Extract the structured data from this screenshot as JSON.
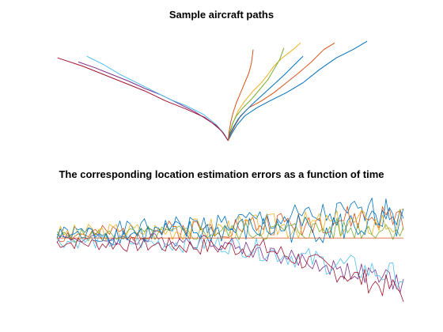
{
  "chart_data": [
    {
      "type": "line",
      "title": "Sample aircraft paths",
      "xlabel": "",
      "ylabel": "",
      "xlim": [
        -200,
        165
      ],
      "ylim": [
        0,
        124
      ],
      "axes_visible": false,
      "grid": false,
      "series": [
        {
          "color": "#0072BD",
          "x": [
            0,
            4,
            10,
            20,
            35,
            50,
            70,
            90,
            110,
            130,
            150,
            167
          ],
          "y": [
            0,
            8,
            18,
            30,
            40,
            48,
            58,
            70,
            86,
            100,
            110,
            120
          ]
        },
        {
          "color": "#D95319",
          "x": [
            0,
            3,
            8,
            15,
            25,
            40,
            55,
            70,
            85,
            100,
            115,
            128
          ],
          "y": [
            0,
            8,
            18,
            30,
            40,
            48,
            58,
            70,
            82,
            95,
            110,
            118
          ]
        },
        {
          "color": "#EDB120",
          "x": [
            0,
            2,
            6,
            12,
            20,
            30,
            40,
            48,
            55,
            65,
            78,
            87
          ],
          "y": [
            0,
            10,
            22,
            36,
            48,
            60,
            70,
            80,
            90,
            100,
            110,
            118
          ]
        },
        {
          "color": "#7E2F8E",
          "x": [
            0,
            -8,
            -20,
            -40,
            -60,
            -80,
            -100,
            -120,
            -140,
            -160,
            -180
          ],
          "y": [
            0,
            12,
            22,
            35,
            45,
            55,
            63,
            72,
            80,
            88,
            95
          ]
        },
        {
          "color": "#77AC30",
          "x": [
            0,
            2,
            5,
            10,
            18,
            28,
            38,
            48,
            55,
            62,
            67
          ],
          "y": [
            0,
            10,
            20,
            30,
            40,
            50,
            62,
            74,
            86,
            98,
            112
          ]
        },
        {
          "color": "#4DBEEE",
          "x": [
            0,
            -6,
            -15,
            -30,
            -50,
            -70,
            -90,
            -110,
            -130,
            -150,
            -170
          ],
          "y": [
            0,
            10,
            20,
            32,
            42,
            50,
            60,
            70,
            80,
            92,
            102
          ]
        },
        {
          "color": "#A2142F",
          "x": [
            0,
            -5,
            -14,
            -28,
            -50,
            -75,
            -100,
            -125,
            -150,
            -175,
            -205
          ],
          "y": [
            0,
            8,
            18,
            28,
            38,
            48,
            60,
            70,
            80,
            90,
            100
          ]
        },
        {
          "color": "#0072BD",
          "x": [
            0,
            2,
            6,
            12,
            20,
            30,
            42,
            55,
            68,
            80,
            90
          ],
          "y": [
            0,
            8,
            16,
            26,
            35,
            45,
            56,
            68,
            80,
            92,
            102
          ]
        },
        {
          "color": "#D95319",
          "x": [
            0,
            1,
            3,
            6,
            10,
            15,
            20,
            25,
            28,
            30
          ],
          "y": [
            0,
            10,
            22,
            34,
            46,
            58,
            70,
            82,
            94,
            110
          ]
        }
      ]
    },
    {
      "type": "line",
      "title": "The corresponding location estimation errors as a function of time",
      "xlabel": "",
      "ylabel": "",
      "xlim": [
        0,
        100
      ],
      "ylim": [
        -2.2,
        1.6
      ],
      "axes_visible": false,
      "grid": false,
      "n_points": 100,
      "series": [
        {
          "color": "#0072BD",
          "trend": [
            [
              0,
              0.1
            ],
            [
              100,
              0.9
            ]
          ],
          "noise": 0.45,
          "seed": 1
        },
        {
          "color": "#D95319",
          "trend": [
            [
              0,
              0.05
            ],
            [
              100,
              0.7
            ]
          ],
          "noise": 0.42,
          "seed": 2
        },
        {
          "color": "#EDB120",
          "trend": [
            [
              0,
              0.15
            ],
            [
              100,
              0.55
            ]
          ],
          "noise": 0.45,
          "seed": 3
        },
        {
          "color": "#7E2F8E",
          "trend": [
            [
              0,
              0.0
            ],
            [
              45,
              -0.1
            ],
            [
              100,
              -1.5
            ]
          ],
          "noise": 0.3,
          "seed": 4
        },
        {
          "color": "#77AC30",
          "trend": [
            [
              0,
              0.05
            ],
            [
              100,
              0.35
            ]
          ],
          "noise": 0.35,
          "seed": 5
        },
        {
          "color": "#4DBEEE",
          "trend": [
            [
              0,
              -0.1
            ],
            [
              50,
              -0.2
            ],
            [
              100,
              -1.3
            ]
          ],
          "noise": 0.38,
          "seed": 6
        },
        {
          "color": "#A2142F",
          "trend": [
            [
              0,
              -0.15
            ],
            [
              60,
              -0.35
            ],
            [
              100,
              -1.8
            ]
          ],
          "noise": 0.35,
          "seed": 7
        },
        {
          "color": "#0072BD",
          "trend": [
            [
              0,
              0.05
            ],
            [
              100,
              0.45
            ]
          ],
          "noise": 0.5,
          "seed": 8
        },
        {
          "color": "#D95319",
          "trend": [
            [
              0,
              0.0
            ],
            [
              100,
              0.0
            ]
          ],
          "noise": 0.0,
          "seed": 9
        }
      ]
    }
  ]
}
